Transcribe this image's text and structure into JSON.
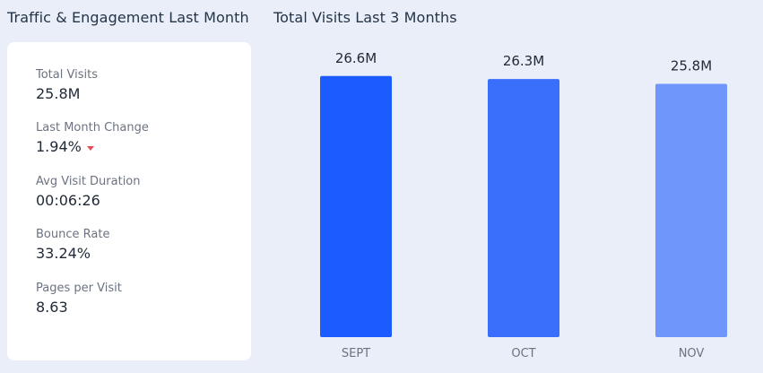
{
  "left_panel": {
    "title": "Traffic & Engagement Last Month",
    "metrics": [
      {
        "label": "Total Visits",
        "value": "25.8M"
      },
      {
        "label": "Last Month Change",
        "value": "1.94%",
        "trend": "down",
        "trend_color": "#e74c5a"
      },
      {
        "label": "Avg Visit Duration",
        "value": "00:06:26"
      },
      {
        "label": "Bounce Rate",
        "value": "33.24%"
      },
      {
        "label": "Pages per Visit",
        "value": "8.63"
      }
    ]
  },
  "chart_data": {
    "type": "bar",
    "title": "Total Visits Last 3 Months",
    "categories": [
      "SEPT",
      "OCT",
      "NOV"
    ],
    "values": [
      26.6,
      26.3,
      25.8
    ],
    "value_labels": [
      "26.6M",
      "26.3M",
      "25.8M"
    ],
    "colors": [
      "#1c5bff",
      "#3a6ffc",
      "#6f97fb"
    ],
    "ylim": [
      0,
      28.5
    ],
    "grid": false,
    "legend": "none"
  }
}
